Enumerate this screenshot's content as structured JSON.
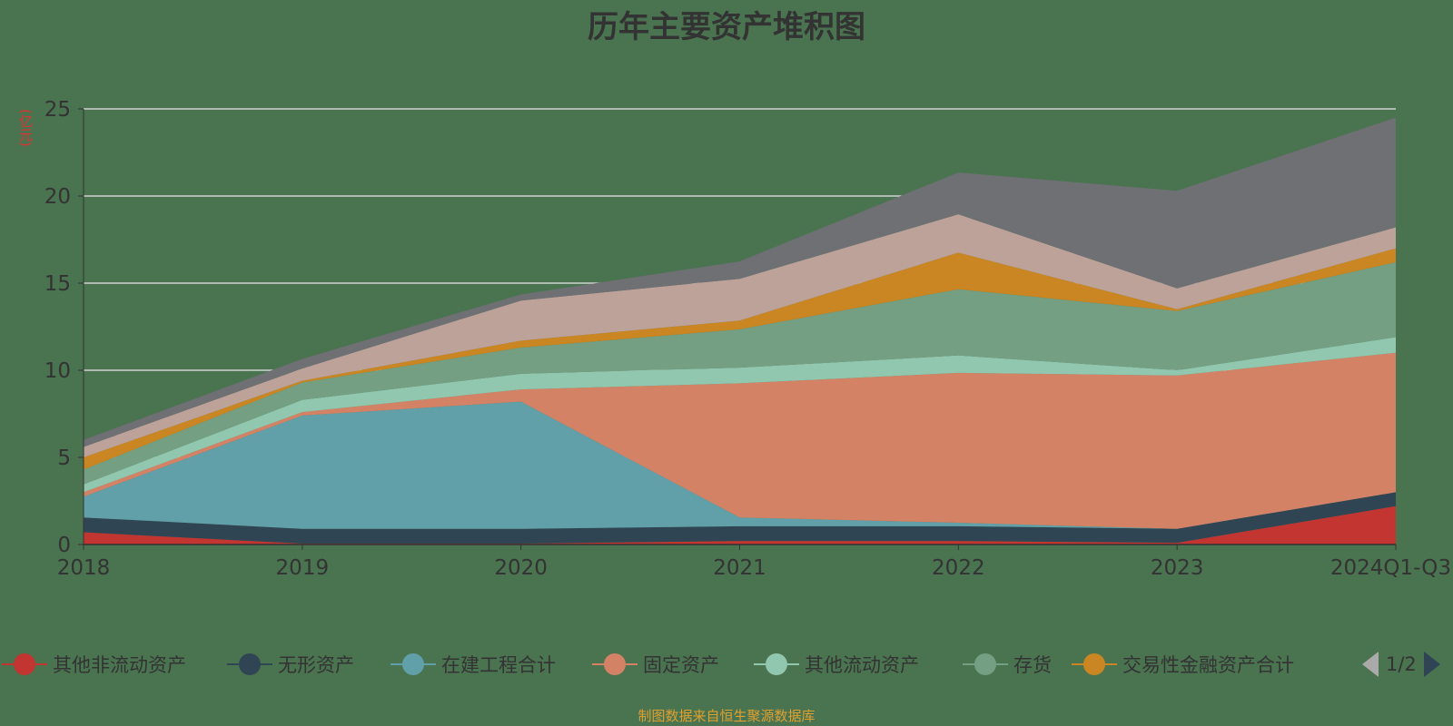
{
  "title": "历年主要资产堆积图",
  "footer": "制图数据来自恒生聚源数据库",
  "pager": "1/2",
  "colors": {
    "background": "#4a7350",
    "grid": "#e8e8e8"
  },
  "chart_data": {
    "type": "area",
    "stacked": true,
    "title": "历年主要资产堆积图",
    "ylabel": "(亿元)",
    "ylim": [
      0,
      25
    ],
    "yticks": [
      0,
      5,
      10,
      15,
      20,
      25
    ],
    "categories": [
      "2018",
      "2019",
      "2020",
      "2021",
      "2022",
      "2023",
      "2024Q1-Q3"
    ],
    "legend_position": "bottom",
    "series": [
      {
        "name": "其他非流动资产",
        "color": "#c23531",
        "values": [
          0.7,
          0.05,
          0.05,
          0.2,
          0.2,
          0.1,
          2.2
        ],
        "in_legend": true
      },
      {
        "name": "无形资产",
        "color": "#2f4554",
        "values": [
          0.85,
          0.85,
          0.85,
          0.85,
          0.85,
          0.8,
          0.8
        ],
        "in_legend": true
      },
      {
        "name": "在建工程合计",
        "color": "#61a0a8",
        "values": [
          1.2,
          6.5,
          7.3,
          0.5,
          0.2,
          0.0,
          0.0
        ],
        "in_legend": true
      },
      {
        "name": "固定资产",
        "color": "#d48265",
        "values": [
          0.25,
          0.2,
          0.7,
          7.7,
          8.6,
          8.8,
          8.0
        ],
        "in_legend": true
      },
      {
        "name": "其他流动资产",
        "color": "#91c7ae",
        "values": [
          0.45,
          0.7,
          0.9,
          0.9,
          1.0,
          0.3,
          0.9
        ],
        "in_legend": true
      },
      {
        "name": "存货",
        "color": "#749f83",
        "values": [
          0.85,
          1.0,
          1.5,
          2.2,
          3.8,
          3.4,
          4.3
        ],
        "in_legend": true
      },
      {
        "name": "交易性金融资产合计",
        "color": "#ca8622",
        "values": [
          0.7,
          0.1,
          0.4,
          0.5,
          2.1,
          0.1,
          0.8
        ],
        "in_legend": true
      },
      {
        "name": "",
        "color": "#bda29a",
        "values": [
          0.6,
          0.7,
          2.3,
          2.4,
          2.2,
          1.2,
          1.2
        ],
        "in_legend": false
      },
      {
        "name": "",
        "color": "#6e7074",
        "values": [
          0.4,
          0.55,
          0.35,
          1.0,
          2.4,
          5.6,
          6.3
        ],
        "in_legend": false
      }
    ]
  }
}
